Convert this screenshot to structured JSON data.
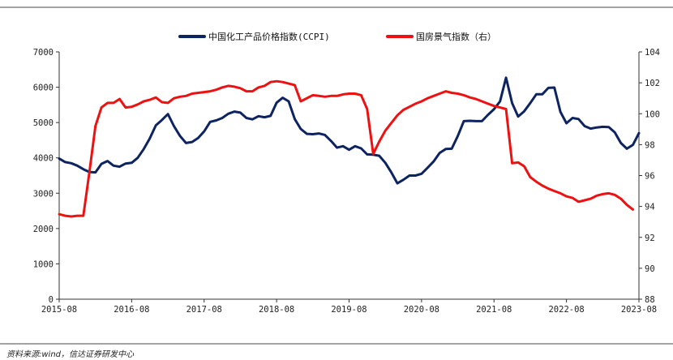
{
  "source_note": "资料来源:wind，信达证券研发中心",
  "chart_data": {
    "type": "line",
    "title": "",
    "x_ticks": [
      "2015-08",
      "2016-08",
      "2017-08",
      "2018-08",
      "2019-08",
      "2020-08",
      "2021-08",
      "2022-08",
      "2023-08"
    ],
    "left_axis": {
      "ylim": [
        0,
        7000
      ],
      "ticks": [
        "0",
        "1000",
        "2000",
        "3000",
        "4000",
        "5000",
        "6000",
        "7000"
      ]
    },
    "right_axis": {
      "ylim": [
        88,
        104
      ],
      "ticks": [
        "88",
        "90",
        "92",
        "94",
        "96",
        "98",
        "100",
        "102",
        "104"
      ]
    },
    "series": [
      {
        "name": "中国化工产品价格指数(CCPI)",
        "axis": "left",
        "color": "#0d2461",
        "values": [
          3980,
          3880,
          3850,
          3780,
          3680,
          3600,
          3590,
          3830,
          3910,
          3780,
          3750,
          3840,
          3860,
          4000,
          4250,
          4550,
          4920,
          5070,
          5240,
          4900,
          4620,
          4420,
          4450,
          4560,
          4750,
          5020,
          5060,
          5130,
          5250,
          5310,
          5280,
          5130,
          5090,
          5180,
          5150,
          5190,
          5560,
          5700,
          5600,
          5100,
          4820,
          4680,
          4670,
          4690,
          4650,
          4480,
          4290,
          4330,
          4230,
          4330,
          4270,
          4100,
          4090,
          4060,
          3860,
          3590,
          3280,
          3380,
          3500,
          3500,
          3550,
          3720,
          3900,
          4140,
          4250,
          4260,
          4620,
          5040,
          5050,
          5040,
          5040,
          5220,
          5380,
          5600,
          6270,
          5550,
          5170,
          5320,
          5550,
          5800,
          5800,
          5980,
          5990,
          5300,
          4980,
          5130,
          5100,
          4900,
          4830,
          4860,
          4880,
          4870,
          4720,
          4420,
          4260,
          4370,
          4700
        ]
      },
      {
        "name": "国房景气指数（右）",
        "axis": "right",
        "color": "#ee1111",
        "values": [
          93.5,
          93.4,
          93.35,
          93.4,
          93.4,
          96.2,
          99.2,
          100.4,
          100.7,
          100.7,
          100.95,
          100.4,
          100.45,
          100.6,
          100.8,
          100.9,
          101.05,
          100.75,
          100.7,
          101.0,
          101.1,
          101.15,
          101.3,
          101.35,
          101.4,
          101.45,
          101.55,
          101.7,
          101.8,
          101.75,
          101.65,
          101.45,
          101.45,
          101.7,
          101.8,
          102.05,
          102.1,
          102.05,
          101.95,
          101.85,
          100.8,
          101.0,
          101.2,
          101.15,
          101.1,
          101.15,
          101.15,
          101.25,
          101.3,
          101.3,
          101.2,
          100.3,
          97.4,
          98.2,
          98.9,
          99.4,
          99.9,
          100.25,
          100.45,
          100.65,
          100.8,
          101.0,
          101.15,
          101.3,
          101.45,
          101.35,
          101.3,
          101.2,
          101.05,
          100.95,
          100.8,
          100.65,
          100.5,
          100.4,
          100.3,
          96.8,
          96.85,
          96.6,
          95.9,
          95.6,
          95.35,
          95.15,
          95.0,
          94.85,
          94.65,
          94.55,
          94.3,
          94.4,
          94.5,
          94.7,
          94.8,
          94.85,
          94.75,
          94.5,
          94.1,
          93.8
        ]
      }
    ],
    "legend_position": "top-center"
  }
}
